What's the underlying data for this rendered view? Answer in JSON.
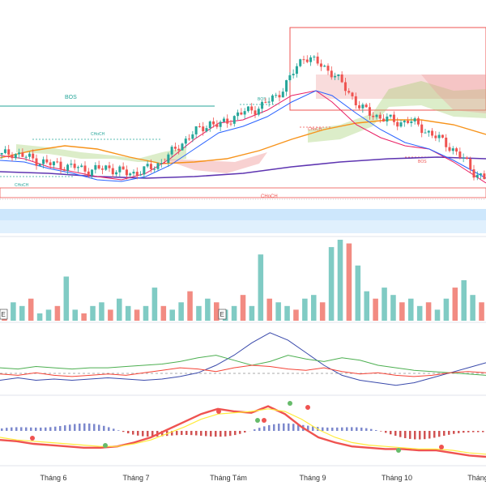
{
  "colors": {
    "up": "#26a69a",
    "down": "#ef5350",
    "ema_fast": "#e91e63",
    "ema_mid": "#2962ff",
    "ema_slow": "#f7931a",
    "ema_long": "#5e35b1",
    "cloud_up": "#9ccc65",
    "cloud_down": "#ef9a9a",
    "bos_line": "#26a69a",
    "choch_line": "#ef5350",
    "band": "#90caf9",
    "vol_up": "#80cbc4",
    "vol_down": "#f28b82",
    "osc_blue": "#3949ab",
    "osc_green": "#4caf50",
    "osc_red": "#f44336",
    "macd_up": "#66bb6a",
    "macd_down": "#ef5350",
    "macd_signal": "#ffeb3b",
    "hist_pos": "#5c6bc0",
    "hist_neg": "#c62828"
  },
  "labels": {
    "bos": "BOS",
    "bos_small": "BOS",
    "choch_left": "CHoCH",
    "choch_mid": "CHoCH",
    "choch_small": "CHoCH",
    "choch_big": "CHoCH",
    "bos_right": "BOS",
    "volume_badge": "E",
    "volume_badge2": "E"
  },
  "x_axis": {
    "ticks": [
      "Tháng 6",
      "Tháng 7",
      "Tháng Tám",
      "Tháng 9",
      "Tháng 10",
      "Tháng"
    ]
  },
  "chart_data": [
    {
      "type": "candlestick",
      "pane": "price",
      "bars": 140,
      "close_path": [
        46,
        47,
        46,
        45,
        44,
        43,
        43,
        42,
        42,
        41,
        41,
        42,
        41,
        40,
        40,
        41,
        42,
        44,
        47,
        50,
        53,
        55,
        57,
        56,
        58,
        60,
        61,
        62,
        64,
        66,
        70,
        75,
        80,
        78,
        76,
        74,
        70,
        66,
        62,
        60,
        59,
        58,
        57,
        58,
        56,
        54,
        52,
        50,
        47,
        44,
        40,
        38
      ]
    },
    {
      "type": "bar",
      "pane": "volume",
      "values": [
        3,
        5,
        4,
        6,
        2,
        3,
        4,
        12,
        3,
        2,
        4,
        5,
        3,
        6,
        4,
        3,
        4,
        9,
        4,
        3,
        5,
        8,
        4,
        6,
        5,
        3,
        4,
        7,
        4,
        18,
        6,
        5,
        4,
        3,
        6,
        7,
        5,
        20,
        22,
        21,
        15,
        8,
        6,
        9,
        7,
        5,
        6,
        4,
        5,
        3,
        6,
        9,
        11,
        7,
        5
      ]
    },
    {
      "type": "line",
      "pane": "oscillator",
      "series": [
        {
          "color_key": "osc_blue",
          "values": [
            40,
            42,
            40,
            41,
            40,
            41,
            42,
            41,
            40,
            41,
            43,
            46,
            52,
            60,
            70,
            78,
            72,
            62,
            52,
            44,
            40,
            38,
            36,
            38,
            42,
            46,
            50,
            54
          ]
        },
        {
          "color_key": "osc_green",
          "values": [
            50,
            49,
            51,
            50,
            49,
            50,
            50,
            51,
            52,
            53,
            55,
            58,
            60,
            56,
            52,
            55,
            60,
            57,
            55,
            58,
            56,
            52,
            50,
            48,
            47,
            46,
            45,
            44
          ]
        },
        {
          "color_key": "osc_red",
          "values": [
            45,
            44,
            46,
            44,
            43,
            44,
            45,
            44,
            46,
            48,
            50,
            49,
            47,
            50,
            52,
            51,
            49,
            48,
            50,
            47,
            45,
            46,
            44,
            43,
            44,
            46,
            47,
            46
          ]
        }
      ]
    },
    {
      "type": "line",
      "pane": "macd",
      "series": [
        {
          "color_key": "macd_down",
          "values": [
            48,
            47,
            45,
            44,
            43,
            42,
            42,
            43,
            46,
            50,
            56,
            62,
            68,
            72,
            70,
            69,
            74,
            68,
            58,
            50,
            46,
            43,
            42,
            41,
            41,
            40,
            40,
            38,
            36,
            35
          ]
        },
        {
          "color_key": "macd_signal",
          "values": [
            50,
            48,
            47,
            46,
            45,
            44,
            43,
            43,
            45,
            48,
            53,
            58,
            64,
            68,
            69,
            70,
            72,
            70,
            64,
            56,
            50,
            46,
            44,
            43,
            42,
            41,
            41,
            40,
            38,
            37
          ]
        }
      ]
    }
  ]
}
